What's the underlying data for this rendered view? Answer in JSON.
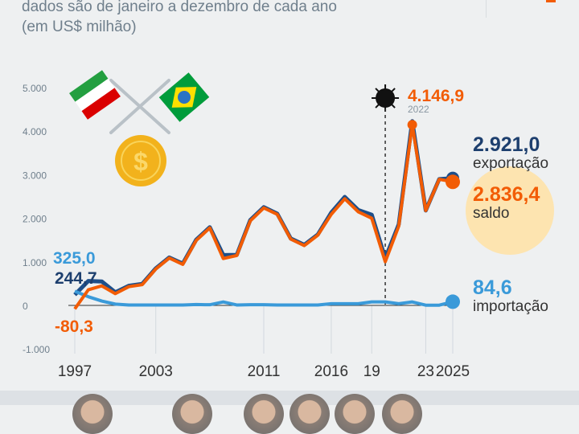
{
  "header": {
    "subtitle_line1": "dados são de janeiro a dezembro de cada ano",
    "subtitle_line2": "(em US$ milhão)"
  },
  "chart_data": {
    "type": "line",
    "title": "",
    "subtitle": "dados são de janeiro a dezembro de cada ano (em US$ milhão)",
    "x": [
      1997,
      1998,
      1999,
      2000,
      2001,
      2002,
      2003,
      2004,
      2005,
      2006,
      2007,
      2008,
      2009,
      2010,
      2011,
      2012,
      2013,
      2014,
      2015,
      2016,
      2017,
      2018,
      2019,
      2020,
      2021,
      2022,
      2023,
      2024,
      2025
    ],
    "series": [
      {
        "name": "exportação",
        "color": "#1d4e89",
        "values": [
          244.7,
          560,
          550,
          300,
          450,
          495,
          850,
          1100,
          960,
          1510,
          1795,
          1155,
          1160,
          1960,
          2255,
          2105,
          1535,
          1390,
          1625,
          2130,
          2490,
          2190,
          2080,
          1080,
          1860,
          4230,
          2180,
          2900,
          2921.0
        ]
      },
      {
        "name": "saldo",
        "color": "#f25c05",
        "values": [
          -80.3,
          358,
          448,
          270,
          430,
          478,
          836,
          1087,
          943,
          1493,
          1779,
          1075,
          1146,
          1940,
          2239,
          2090,
          1522,
          1373,
          1612,
          2090,
          2448,
          2149,
          2000,
          1003,
          1821,
          4146.9,
          2179,
          2895,
          2836.4
        ]
      },
      {
        "name": "importação",
        "color": "#3a9ad9",
        "values": [
          325.0,
          200,
          100,
          30,
          10,
          10,
          10,
          10,
          10,
          20,
          15,
          80,
          10,
          15,
          15,
          10,
          10,
          10,
          10,
          40,
          40,
          40,
          80,
          80,
          40,
          80,
          5,
          5,
          84.6
        ]
      }
    ],
    "yticks": [
      "5.000",
      "4.000",
      "3.000",
      "2.000",
      "1.000",
      "0",
      "-1.000"
    ],
    "ytick_values": [
      5000,
      4000,
      3000,
      2000,
      1000,
      0,
      -1000
    ],
    "ylim": [
      -1000,
      5000
    ],
    "xtick_labels": [
      {
        "year": 1997,
        "label": "1997"
      },
      {
        "year": 2003,
        "label": "2003"
      },
      {
        "year": 2011,
        "label": "2011"
      },
      {
        "year": 2016,
        "label": "2016"
      },
      {
        "year": 2019,
        "label": "19"
      },
      {
        "year": 2023,
        "label": "23"
      },
      {
        "year": 2025,
        "label": "2025"
      }
    ],
    "annotations": {
      "peak_value": "4.146,9",
      "peak_year": "2022",
      "start_import": "325,0",
      "start_export": "244,7",
      "start_saldo": "-80,3",
      "end_export": "2.921,0",
      "end_export_label": "exportação",
      "end_saldo": "2.836,4",
      "end_saldo_label": "saldo",
      "end_import": "84,6",
      "end_import_label": "importação"
    },
    "marker_year": 2020,
    "legend": "right"
  }
}
